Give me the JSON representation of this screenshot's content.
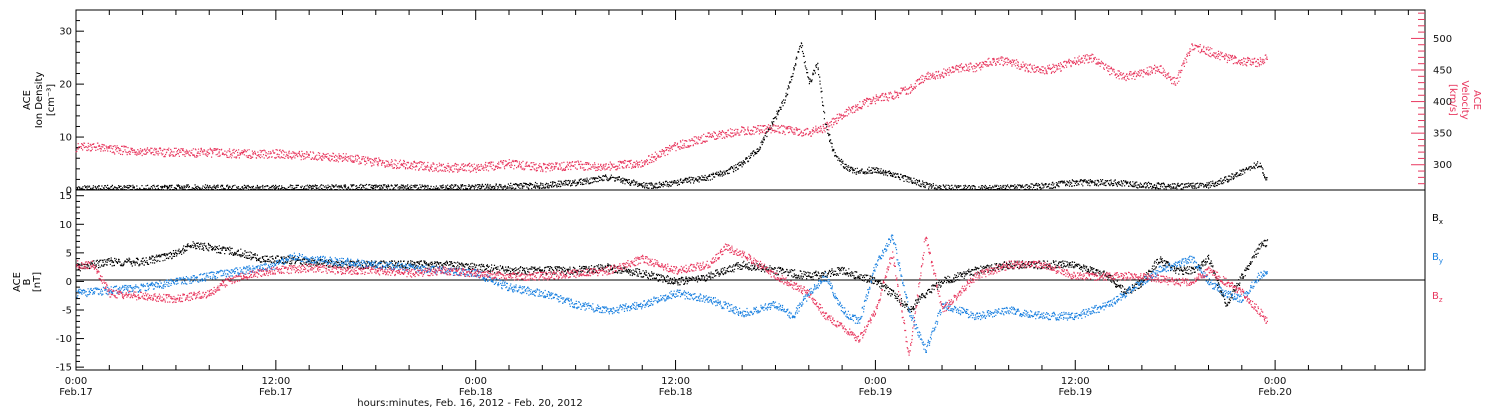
{
  "chart_data": [
    {
      "type": "scatter",
      "panel": "top",
      "ylabel_left": [
        "ACE",
        "Ion Density",
        "[cm⁻³]"
      ],
      "ylabel_right": [
        "ACE",
        "Velocity",
        "[km/s]"
      ],
      "ylim_left": [
        0,
        34
      ],
      "yticks_left": [
        0,
        10,
        20,
        30
      ],
      "ylim_right": [
        260,
        545
      ],
      "yticks_right": [
        300,
        350,
        400,
        450,
        500
      ],
      "colors": {
        "density": "#000000",
        "velocity": "#e8385f"
      },
      "series": [
        {
          "key": "density",
          "axis": "left",
          "x": [
            0.0,
            2.0,
            4.0,
            6.0,
            8.0,
            10.0,
            12.0,
            14.0,
            16.0,
            18.0,
            20.0,
            22.0,
            24.0,
            26.0,
            28.0,
            30.0,
            32.0,
            34.0,
            35.0,
            36.0,
            38.0,
            39.0,
            40.0,
            41.0,
            41.5,
            42.0,
            42.5,
            43.0,
            43.5,
            44.0,
            44.5,
            45.0,
            45.5,
            46.0,
            46.5,
            47.0,
            48.0,
            49.0,
            50.0,
            51.0,
            52.0,
            53.0,
            54.0,
            56.0,
            58.0,
            60.0,
            62.0,
            64.0,
            66.0,
            68.0,
            69.0,
            70.0,
            71.0,
            71.5
          ],
          "y": [
            0.3,
            0.4,
            0.4,
            0.5,
            0.5,
            0.4,
            0.4,
            0.5,
            0.5,
            0.6,
            0.5,
            0.5,
            0.6,
            0.8,
            1.0,
            1.5,
            2.5,
            1.0,
            1.0,
            1.5,
            2.5,
            3.5,
            5.0,
            8.0,
            11.0,
            14.0,
            17.0,
            22.0,
            28.0,
            20.0,
            24.0,
            12.0,
            7.0,
            5.0,
            4.0,
            3.5,
            4.0,
            3.0,
            2.0,
            1.0,
            0.5,
            0.4,
            0.4,
            0.5,
            0.8,
            1.5,
            1.5,
            1.0,
            0.8,
            1.0,
            2.0,
            3.5,
            5.0,
            2.0
          ]
        },
        {
          "key": "velocity",
          "axis": "right",
          "x": [
            0.0,
            1.0,
            2.0,
            4.0,
            6.0,
            8.0,
            10.0,
            12.0,
            14.0,
            16.0,
            18.0,
            20.0,
            22.0,
            24.0,
            26.0,
            28.0,
            30.0,
            32.0,
            34.0,
            36.0,
            38.0,
            39.0,
            40.0,
            41.0,
            42.0,
            43.0,
            44.0,
            45.0,
            46.0,
            47.0,
            48.0,
            49.0,
            50.0,
            51.0,
            52.0,
            53.0,
            54.0,
            55.0,
            56.0,
            57.0,
            58.0,
            59.0,
            60.0,
            61.0,
            62.0,
            63.0,
            64.0,
            65.0,
            66.0,
            67.0,
            68.0,
            69.0,
            70.0,
            71.0,
            71.5
          ],
          "y": [
            328,
            330,
            325,
            322,
            320,
            320,
            318,
            318,
            315,
            312,
            305,
            300,
            296,
            296,
            302,
            296,
            300,
            298,
            304,
            330,
            345,
            350,
            355,
            356,
            358,
            354,
            352,
            360,
            380,
            395,
            405,
            410,
            420,
            440,
            445,
            455,
            455,
            465,
            465,
            455,
            450,
            455,
            465,
            470,
            450,
            440,
            445,
            455,
            430,
            490,
            480,
            470,
            465,
            462,
            470
          ]
        }
      ]
    },
    {
      "type": "scatter",
      "panel": "bottom",
      "ylabel": [
        "ACE",
        "B",
        "[nT]"
      ],
      "ylim": [
        -15.5,
        16
      ],
      "yticks": [
        -15,
        -10,
        -5,
        0,
        5,
        10,
        15
      ],
      "xlim": [
        0,
        81
      ],
      "xticks": [
        {
          "x": 0,
          "line1": "0:00",
          "line2": "Feb.17"
        },
        {
          "x": 12,
          "line1": "12:00",
          "line2": "Feb.17"
        },
        {
          "x": 24,
          "line1": "0:00",
          "line2": "Feb.18"
        },
        {
          "x": 36,
          "line1": "12:00",
          "line2": "Feb.18"
        },
        {
          "x": 48,
          "line1": "0:00",
          "line2": "Feb.19"
        },
        {
          "x": 60,
          "line1": "12:00",
          "line2": "Feb.19"
        },
        {
          "x": 72,
          "line1": "0:00",
          "line2": "Feb.20"
        }
      ],
      "xlabel": "hours:minutes, Feb. 16, 2012 - Feb. 20, 2012",
      "legend": [
        {
          "base": "B",
          "sub": "x",
          "color": "#000000"
        },
        {
          "base": "B",
          "sub": "y",
          "color": "#1a80e0"
        },
        {
          "base": "B",
          "sub": "z",
          "color": "#e8385f"
        }
      ],
      "series": [
        {
          "name": "Bx",
          "color": "#000000",
          "x": [
            0.0,
            2.0,
            4.0,
            6.0,
            7.0,
            8.0,
            10.0,
            11.0,
            12.0,
            14.0,
            16.0,
            18.0,
            20.0,
            22.0,
            24.0,
            26.0,
            28.0,
            30.0,
            32.0,
            34.0,
            36.0,
            38.0,
            40.0,
            42.0,
            44.0,
            46.0,
            48.0,
            49.0,
            50.0,
            51.0,
            52.0,
            54.0,
            56.0,
            58.0,
            60.0,
            62.0,
            63.0,
            64.0,
            65.0,
            66.0,
            67.0,
            68.0,
            69.0,
            70.0,
            71.0,
            71.5
          ],
          "y": [
            2.5,
            3.5,
            3.5,
            5.0,
            6.5,
            6.0,
            5.0,
            4.0,
            4.0,
            3.5,
            3.0,
            3.0,
            3.0,
            3.0,
            2.5,
            2.0,
            2.0,
            2.0,
            2.5,
            1.5,
            0.0,
            1.0,
            3.0,
            2.0,
            1.0,
            2.0,
            0.0,
            -2.0,
            -5.0,
            -2.0,
            0.0,
            2.0,
            3.0,
            3.0,
            3.0,
            1.0,
            -2.0,
            0.0,
            4.0,
            2.0,
            2.0,
            4.0,
            -4.0,
            1.0,
            6.0,
            7.0
          ]
        },
        {
          "name": "By",
          "color": "#1a80e0",
          "x": [
            0.0,
            2.0,
            4.0,
            6.0,
            8.0,
            10.0,
            12.0,
            13.0,
            14.0,
            16.0,
            18.0,
            20.0,
            22.0,
            24.0,
            26.0,
            28.0,
            30.0,
            32.0,
            34.0,
            36.0,
            38.0,
            40.0,
            42.0,
            43.0,
            44.0,
            45.0,
            46.0,
            47.0,
            48.0,
            49.0,
            50.0,
            51.0,
            52.0,
            54.0,
            56.0,
            58.0,
            60.0,
            62.0,
            64.0,
            65.0,
            66.0,
            67.0,
            68.0,
            69.0,
            70.0,
            71.0,
            71.5
          ],
          "y": [
            -2.0,
            -1.5,
            -1.0,
            0.0,
            1.0,
            2.0,
            3.0,
            4.5,
            4.0,
            3.5,
            3.0,
            2.5,
            2.0,
            1.5,
            -1.0,
            -2.0,
            -4.0,
            -5.0,
            -4.0,
            -2.0,
            -3.0,
            -5.5,
            -4.0,
            -6.0,
            -2.0,
            1.0,
            -5.0,
            -7.0,
            3.0,
            8.0,
            -5.0,
            -12.0,
            -4.0,
            -6.0,
            -5.0,
            -6.0,
            -6.0,
            -4.0,
            0.0,
            2.0,
            3.0,
            4.0,
            0.0,
            -2.0,
            -3.0,
            1.0,
            2.0
          ]
        },
        {
          "name": "Bz",
          "color": "#e8385f",
          "x": [
            0.0,
            1.0,
            2.0,
            4.0,
            6.0,
            8.0,
            9.0,
            10.0,
            12.0,
            14.0,
            16.0,
            18.0,
            20.0,
            22.0,
            24.0,
            26.0,
            28.0,
            30.0,
            32.0,
            34.0,
            36.0,
            38.0,
            39.0,
            40.0,
            42.0,
            44.0,
            45.0,
            46.0,
            47.0,
            48.0,
            49.0,
            50.0,
            51.0,
            52.0,
            53.0,
            54.0,
            56.0,
            58.0,
            60.0,
            62.0,
            64.0,
            66.0,
            67.0,
            68.0,
            69.0,
            70.0,
            71.0,
            71.5
          ],
          "y": [
            3.0,
            3.0,
            -2.0,
            -2.5,
            -3.0,
            -2.0,
            0.0,
            1.0,
            2.0,
            2.5,
            2.0,
            2.0,
            1.5,
            2.0,
            1.5,
            1.0,
            1.0,
            1.5,
            2.0,
            4.0,
            2.0,
            3.0,
            6.0,
            5.0,
            1.0,
            -2.0,
            -6.0,
            -8.0,
            -10.0,
            -5.0,
            5.0,
            -13.0,
            8.0,
            -5.0,
            -2.0,
            1.0,
            3.0,
            3.0,
            1.0,
            1.0,
            1.0,
            0.0,
            0.0,
            2.0,
            0.0,
            -2.0,
            -5.0,
            -7.0
          ]
        }
      ]
    }
  ]
}
